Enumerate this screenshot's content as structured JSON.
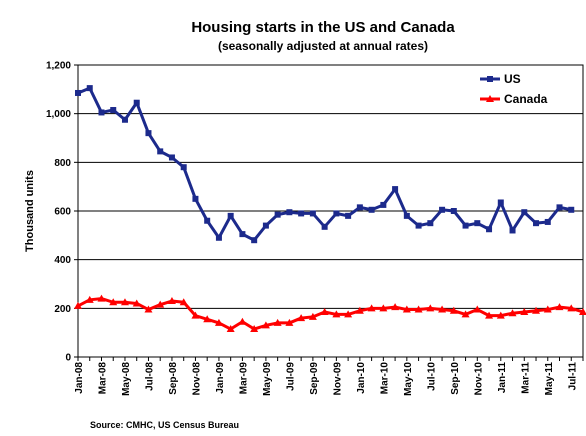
{
  "chart_data": {
    "type": "line",
    "title": "Housing starts in the US and Canada",
    "subtitle": "(seasonally adjusted at annual rates)",
    "ylabel": "Thousand units",
    "xlabel": "",
    "ylim": [
      0,
      1200
    ],
    "yticks": [
      "0",
      "200",
      "400",
      "600",
      "800",
      "1,000",
      "1,200"
    ],
    "ytick_values": [
      0,
      200,
      400,
      600,
      800,
      1000,
      1200
    ],
    "grid": "horizontal",
    "legend_position": "top-right",
    "categories": [
      "Jan-08",
      "Feb-08",
      "Mar-08",
      "Apr-08",
      "May-08",
      "Jun-08",
      "Jul-08",
      "Aug-08",
      "Sep-08",
      "Oct-08",
      "Nov-08",
      "Dec-08",
      "Jan-09",
      "Feb-09",
      "Mar-09",
      "Apr-09",
      "May-09",
      "Jun-09",
      "Jul-09",
      "Aug-09",
      "Sep-09",
      "Oct-09",
      "Nov-09",
      "Dec-09",
      "Jan-10",
      "Feb-10",
      "Mar-10",
      "Apr-10",
      "May-10",
      "Jun-10",
      "Jul-10",
      "Aug-10",
      "Sep-10",
      "Oct-10",
      "Nov-10",
      "Dec-10",
      "Jan-11",
      "Feb-11",
      "Mar-11",
      "Apr-11",
      "May-11",
      "Jun-11",
      "Jul-11",
      "Aug-11"
    ],
    "xtick_labels": [
      "Jan-08",
      "Mar-08",
      "May-08",
      "Jul-08",
      "Sep-08",
      "Nov-08",
      "Jan-09",
      "Mar-09",
      "May-09",
      "Jul-09",
      "Sep-09",
      "Nov-09",
      "Jan-10",
      "Mar-10",
      "May-10",
      "Jul-10",
      "Sep-10",
      "Nov-10",
      "Jan-11",
      "Mar-11",
      "May-11",
      "Jul-11"
    ],
    "series": [
      {
        "name": "US",
        "color": "#1c2a8c",
        "marker": "square",
        "values": [
          1085,
          1105,
          1005,
          1015,
          975,
          1045,
          920,
          845,
          820,
          780,
          650,
          560,
          490,
          580,
          505,
          480,
          540,
          585,
          595,
          590,
          590,
          535,
          590,
          580,
          615,
          605,
          625,
          690,
          580,
          540,
          550,
          605,
          600,
          540,
          550,
          525,
          635,
          520,
          595,
          550,
          555,
          615,
          605,
          null
        ]
      },
      {
        "name": "Canada",
        "color": "#ff0000",
        "marker": "triangle",
        "values": [
          210,
          235,
          240,
          225,
          225,
          220,
          195,
          215,
          230,
          225,
          170,
          155,
          140,
          115,
          145,
          115,
          130,
          140,
          140,
          160,
          165,
          185,
          175,
          175,
          190,
          200,
          200,
          205,
          195,
          195,
          200,
          195,
          190,
          175,
          195,
          170,
          170,
          180,
          185,
          190,
          195,
          205,
          200,
          185
        ]
      }
    ]
  },
  "source_text": "Source: CMHC, US Census Bureau"
}
